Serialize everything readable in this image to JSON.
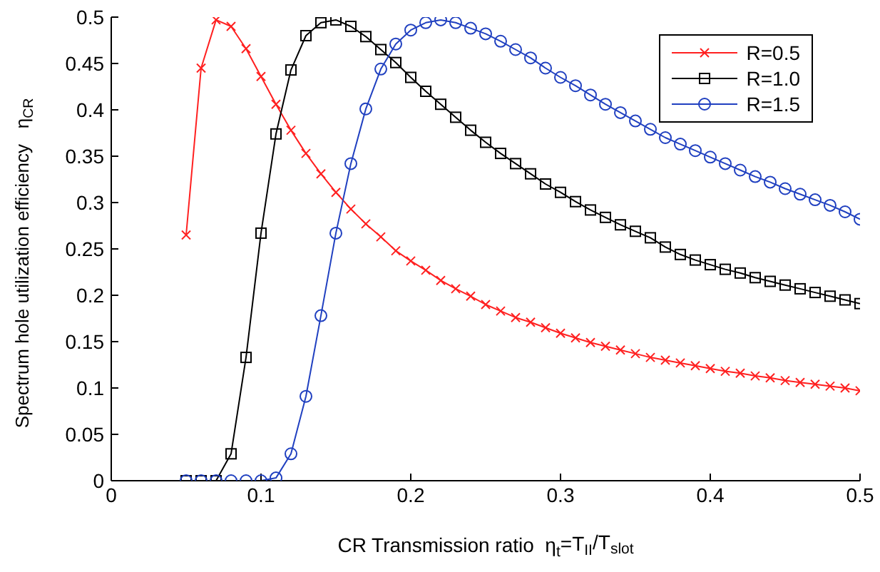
{
  "chart_data": {
    "type": "line",
    "xlabel": "CR Transmission ratio  η$_{t}$=T$_{II}$/T$_{slot}$",
    "ylabel": "Spectrum hole utilization efficiency   η$_{CR}$",
    "x": [
      0.05,
      0.06,
      0.07,
      0.08,
      0.09,
      0.1,
      0.11,
      0.12,
      0.13,
      0.14,
      0.15,
      0.16,
      0.17,
      0.18,
      0.19,
      0.2,
      0.21,
      0.22,
      0.23,
      0.24,
      0.25,
      0.26,
      0.27,
      0.28,
      0.29,
      0.3,
      0.31,
      0.32,
      0.33,
      0.34,
      0.35,
      0.36,
      0.37,
      0.38,
      0.39,
      0.4,
      0.41,
      0.42,
      0.43,
      0.44,
      0.45,
      0.46,
      0.47,
      0.48,
      0.49,
      0.5
    ],
    "series": [
      {
        "name": "R=0.5",
        "color": "#ff2020",
        "marker": "cross",
        "values": [
          0.265,
          0.445,
          0.497,
          0.49,
          0.466,
          0.436,
          0.406,
          0.378,
          0.353,
          0.331,
          0.311,
          0.293,
          0.277,
          0.263,
          0.248,
          0.237,
          0.227,
          0.216,
          0.207,
          0.199,
          0.19,
          0.183,
          0.176,
          0.171,
          0.165,
          0.159,
          0.154,
          0.149,
          0.145,
          0.141,
          0.137,
          0.133,
          0.13,
          0.127,
          0.124,
          0.121,
          0.118,
          0.116,
          0.113,
          0.111,
          0.108,
          0.106,
          0.104,
          0.102,
          0.1,
          0.097
        ]
      },
      {
        "name": "R=1.0",
        "color": "#000000",
        "marker": "square",
        "values": [
          0,
          0,
          0,
          0.029,
          0.133,
          0.267,
          0.374,
          0.443,
          0.48,
          0.494,
          0.497,
          0.49,
          0.479,
          0.465,
          0.451,
          0.435,
          0.42,
          0.406,
          0.392,
          0.378,
          0.365,
          0.353,
          0.342,
          0.331,
          0.32,
          0.311,
          0.301,
          0.292,
          0.284,
          0.276,
          0.269,
          0.262,
          0.252,
          0.244,
          0.238,
          0.233,
          0.228,
          0.224,
          0.219,
          0.215,
          0.211,
          0.207,
          0.203,
          0.199,
          0.195,
          0.191
        ]
      },
      {
        "name": "R=1.5",
        "color": "#2040c0",
        "marker": "circle",
        "values": [
          0,
          0,
          0,
          0,
          0,
          0,
          0.003,
          0.029,
          0.091,
          0.178,
          0.267,
          0.342,
          0.401,
          0.444,
          0.471,
          0.486,
          0.494,
          0.497,
          0.494,
          0.488,
          0.482,
          0.474,
          0.465,
          0.456,
          0.445,
          0.435,
          0.426,
          0.416,
          0.406,
          0.397,
          0.388,
          0.379,
          0.37,
          0.363,
          0.356,
          0.349,
          0.342,
          0.335,
          0.328,
          0.322,
          0.315,
          0.309,
          0.303,
          0.297,
          0.29,
          0.282
        ]
      }
    ],
    "xlim": [
      0,
      0.5
    ],
    "xticks": [
      0,
      0.1,
      0.2,
      0.3,
      0.4,
      0.5
    ],
    "ylim": [
      0,
      0.5
    ],
    "yticks": [
      0,
      0.05,
      0.1,
      0.15,
      0.2,
      0.25,
      0.3,
      0.35,
      0.4,
      0.45,
      0.5
    ],
    "legend": "top right",
    "line_style": "solid"
  }
}
